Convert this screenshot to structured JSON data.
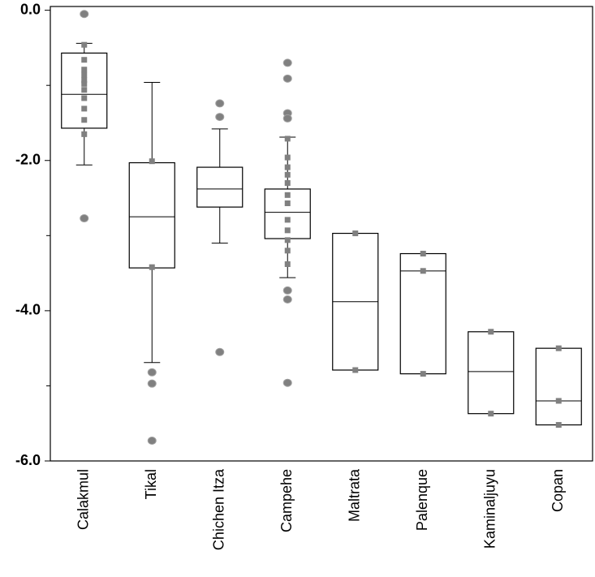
{
  "chart_data": {
    "type": "box",
    "categories": [
      "Calakmul",
      "Tikal",
      "Chichen Itza",
      "Campehe",
      "Maltrata",
      "Palenque",
      "Kaminaljuyu",
      "Copan"
    ],
    "ylim": [
      -6.0,
      0.05
    ],
    "yticks": [
      {
        "value": 0,
        "label": "0.0"
      },
      {
        "value": -2,
        "label": "-2.0"
      },
      {
        "value": -4,
        "label": "-4.0"
      },
      {
        "value": -6,
        "label": "-6.0"
      }
    ],
    "yminorticks": [
      -1,
      -3,
      -5
    ],
    "box_color": "#000000",
    "point_color": "#808080",
    "boxes": [
      {
        "q3": -0.57,
        "median": -1.12,
        "q1": -1.57,
        "whisker_high": -0.44,
        "whisker_low": -2.06,
        "outliers": [
          -0.05,
          -2.77
        ],
        "points": [
          -0.46,
          -0.66,
          -0.79,
          -0.86,
          -0.93,
          -0.98,
          -1.06,
          -1.17,
          -1.31,
          -1.46,
          -1.65
        ]
      },
      {
        "q3": -2.03,
        "median": -2.75,
        "q1": -3.43,
        "whisker_high": -0.96,
        "whisker_low": -4.69,
        "outliers": [
          -4.82,
          -4.97,
          -5.73
        ],
        "points": [
          -2.01,
          -3.42
        ]
      },
      {
        "q3": -2.09,
        "median": -2.38,
        "q1": -2.62,
        "whisker_high": -1.58,
        "whisker_low": -3.1,
        "outliers": [
          -1.24,
          -1.42,
          -4.55
        ],
        "points": []
      },
      {
        "q3": -2.38,
        "median": -2.69,
        "q1": -3.04,
        "whisker_high": -1.69,
        "whisker_low": -3.56,
        "outliers": [
          -0.7,
          -0.91,
          -1.37,
          -1.44,
          -3.73,
          -3.85,
          -4.96
        ],
        "points": [
          -1.71,
          -1.96,
          -2.09,
          -2.19,
          -2.3,
          -2.46,
          -2.57,
          -2.79,
          -2.93,
          -3.06,
          -3.2,
          -3.38
        ]
      },
      {
        "q3": -2.97,
        "median": -3.88,
        "q1": -4.79,
        "whisker_high": null,
        "whisker_low": null,
        "outliers": [],
        "points": [
          -2.97,
          -4.79
        ]
      },
      {
        "q3": -3.24,
        "median": -3.47,
        "q1": -4.84,
        "whisker_high": null,
        "whisker_low": null,
        "outliers": [],
        "points": [
          -3.24,
          -3.47,
          -4.84
        ]
      },
      {
        "q3": -4.28,
        "median": -4.81,
        "q1": -5.37,
        "whisker_high": null,
        "whisker_low": null,
        "outliers": [],
        "points": [
          -4.28,
          -5.37
        ]
      },
      {
        "q3": -4.5,
        "median": -5.2,
        "q1": -5.52,
        "whisker_high": null,
        "whisker_low": null,
        "outliers": [],
        "points": [
          -4.5,
          -5.2,
          -5.52
        ]
      }
    ]
  }
}
